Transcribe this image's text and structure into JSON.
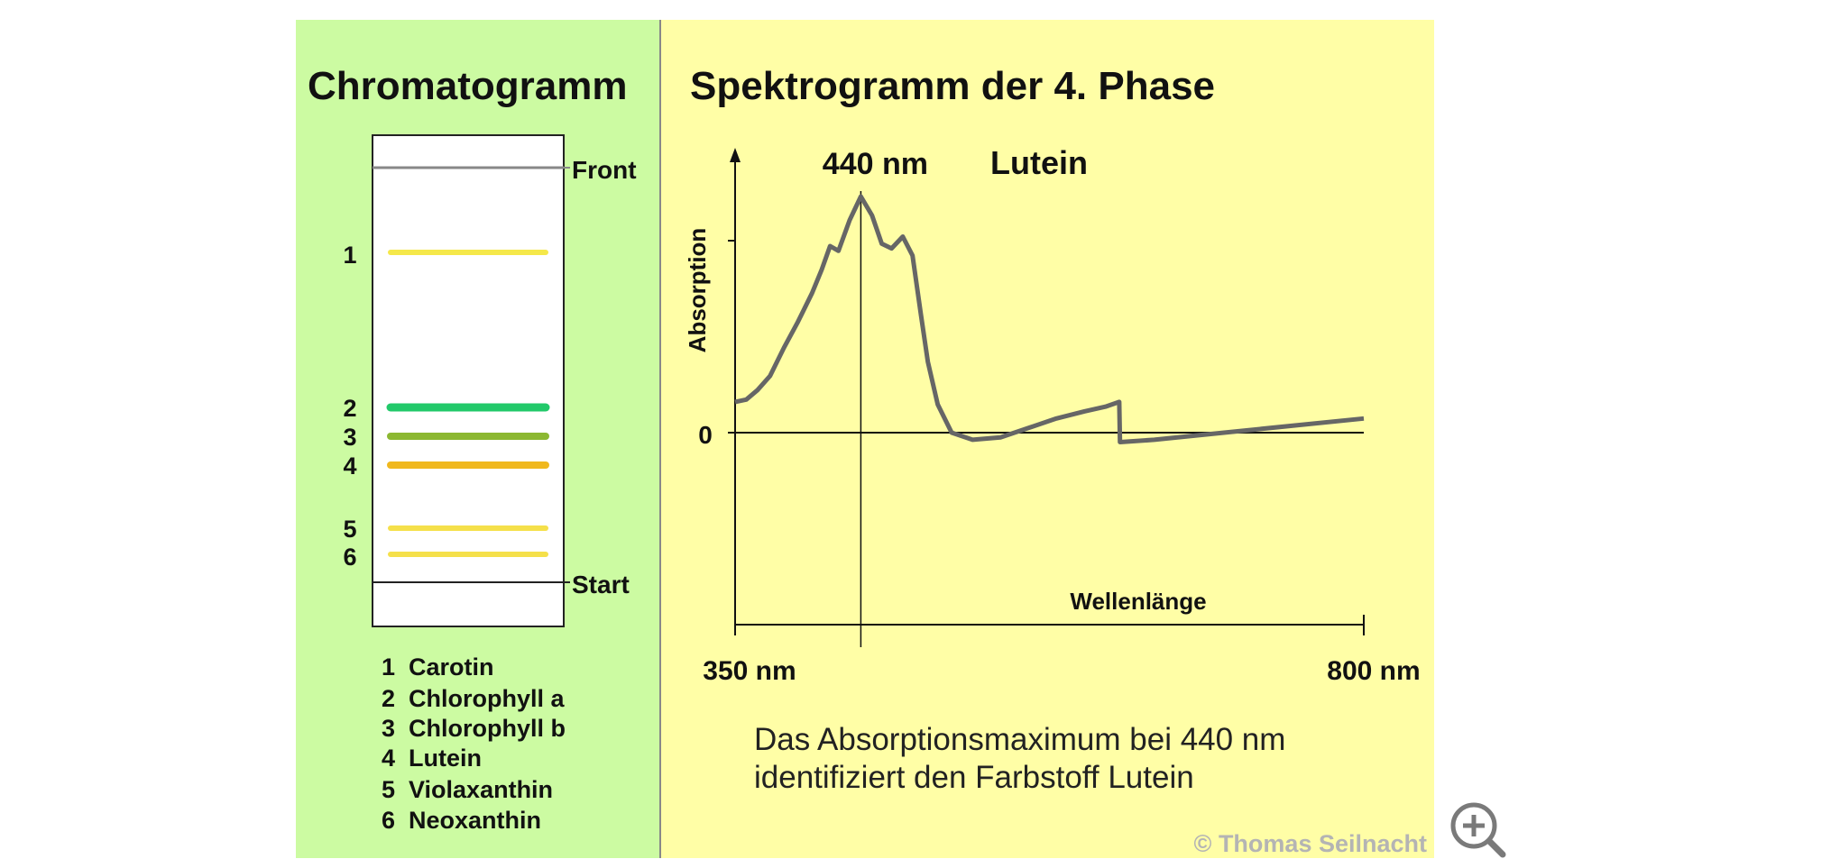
{
  "chromatogram": {
    "title": "Chromatogramm",
    "front_label": "Front",
    "start_label": "Start",
    "bands": [
      {
        "number": "1",
        "pigment": "Carotin",
        "color": "#f5e84a"
      },
      {
        "number": "2",
        "pigment": "Chlorophyll a",
        "color": "#22c96a"
      },
      {
        "number": "3",
        "pigment": "Chlorophyll b",
        "color": "#8cb832"
      },
      {
        "number": "4",
        "pigment": "Lutein",
        "color": "#f0b81e"
      },
      {
        "number": "5",
        "pigment": "Violaxanthin",
        "color": "#f5e04a"
      },
      {
        "number": "6",
        "pigment": "Neoxanthin",
        "color": "#f5e04a"
      }
    ],
    "legend": [
      "1  Carotin",
      "2  Chlorophyll a",
      "3  Chlorophyll b",
      "4  Lutein",
      "5  Violaxanthin",
      "6  Neoxanthin"
    ]
  },
  "chart_data": {
    "type": "line",
    "title": "Spektrogramm der 4. Phase",
    "ylabel": "Absorption",
    "xlabel": "Wellenlänge",
    "x_min_label": "350 nm",
    "x_max_label": "800 nm",
    "zero_label": "0",
    "peak_label": "440 nm",
    "pigment_label": "Lutein",
    "peak_wavelength_nm": 440,
    "xlim": [
      350,
      800
    ],
    "series": [
      {
        "x": [
          350,
          358,
          366,
          375,
          385,
          395,
          405,
          412,
          418,
          424,
          432,
          440,
          448,
          455,
          462,
          470,
          477,
          483,
          488,
          495,
          505,
          520,
          540,
          560,
          580,
          600,
          615,
          625,
          625.5,
          650,
          700,
          750,
          800
        ],
        "values": [
          0.13,
          0.14,
          0.18,
          0.24,
          0.36,
          0.47,
          0.59,
          0.69,
          0.79,
          0.77,
          0.9,
          1.0,
          0.92,
          0.8,
          0.78,
          0.83,
          0.75,
          0.5,
          0.3,
          0.12,
          0.0,
          -0.03,
          -0.02,
          0.02,
          0.06,
          0.09,
          0.11,
          0.13,
          -0.04,
          -0.03,
          0.0,
          0.03,
          0.06
        ]
      }
    ]
  },
  "caption": {
    "line1": "Das Absorptionsmaximum bei 440 nm",
    "line2": "identifiziert den Farbstoff Lutein"
  },
  "copyright": "© Thomas Seilnacht",
  "colors": {
    "left_panel": "#ccfba2",
    "right_panel": "#fffea6",
    "curve": "#666666"
  }
}
